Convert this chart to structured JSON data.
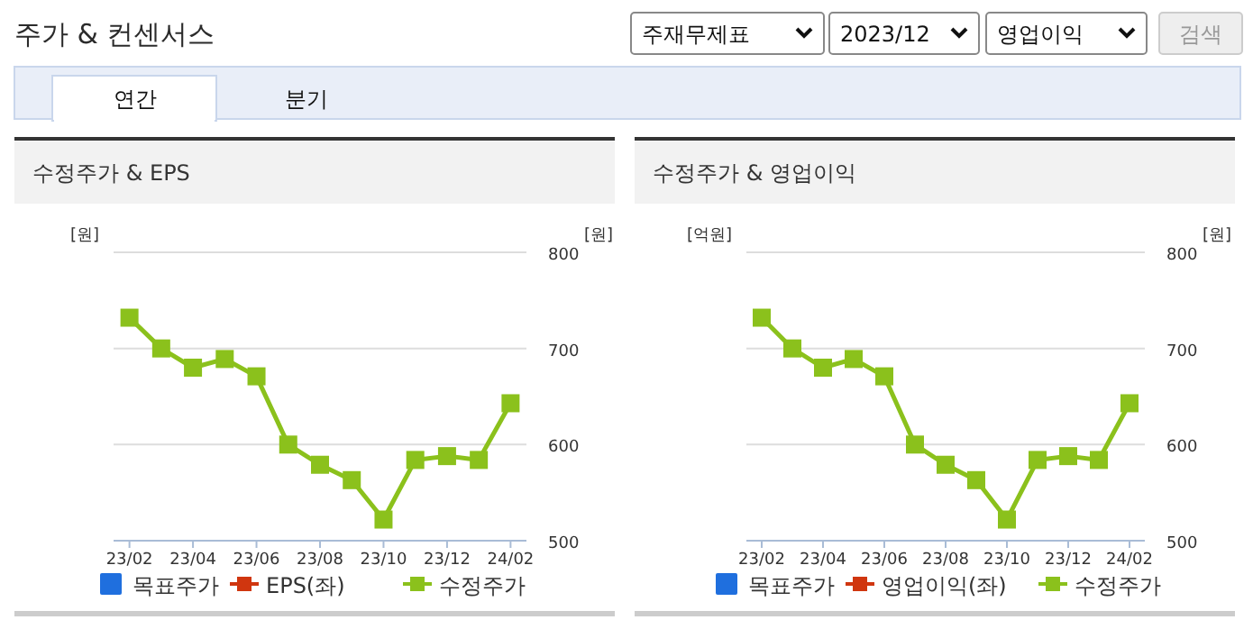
{
  "chart_data": [
    {
      "type": "other",
      "title": "주가 & 컨센서스",
      "annotations": [
        "주재무제표",
        "2023/12",
        "영업이익",
        "검색",
        "연간",
        "분기"
      ]
    },
    {
      "type": "line",
      "title": "수정주가 & EPS",
      "ylabel": "[원]",
      "y2label": "[원]",
      "categories": [
        "23/02",
        null,
        "23/04",
        null,
        "23/06",
        null,
        "23/08",
        null,
        "23/10",
        null,
        "23/12",
        null,
        "24/02"
      ],
      "series": [
        {
          "name": "목표주가",
          "type": "bar",
          "color": "#1f6fde",
          "axis": "y2",
          "values": [
            null,
            null,
            null,
            null,
            null,
            null,
            null,
            null,
            null,
            null,
            null,
            null,
            null
          ]
        },
        {
          "name": "EPS(좌)",
          "type": "line",
          "color": "#d0360f",
          "values": [
            null,
            null,
            null,
            null,
            null,
            null,
            null,
            null,
            null,
            null,
            null,
            null,
            null
          ]
        },
        {
          "name": "수정주가",
          "type": "line",
          "color": "#8bc11c",
          "axis": "y2",
          "values": [
            732,
            700,
            680,
            689,
            671,
            600,
            579,
            563,
            522,
            584,
            588,
            584,
            643
          ]
        }
      ],
      "y2lim": [
        500,
        800
      ],
      "y2ticks": [
        500,
        600,
        700,
        800
      ],
      "grid": "y",
      "legend": "bottom",
      "marker": "square"
    },
    {
      "type": "line",
      "title": "수정주가 & 영업이익",
      "ylabel": "[억원]",
      "y2label": "[원]",
      "categories": [
        "23/02",
        null,
        "23/04",
        null,
        "23/06",
        null,
        "23/08",
        null,
        "23/10",
        null,
        "23/12",
        null,
        "24/02"
      ],
      "series": [
        {
          "name": "목표주가",
          "type": "bar",
          "color": "#1f6fde",
          "axis": "y2",
          "values": [
            null,
            null,
            null,
            null,
            null,
            null,
            null,
            null,
            null,
            null,
            null,
            null,
            null
          ]
        },
        {
          "name": "영업이익(좌)",
          "type": "line",
          "color": "#d0360f",
          "values": [
            null,
            null,
            null,
            null,
            null,
            null,
            null,
            null,
            null,
            null,
            null,
            null,
            null
          ]
        },
        {
          "name": "수정주가",
          "type": "line",
          "color": "#8bc11c",
          "axis": "y2",
          "values": [
            732,
            700,
            680,
            689,
            671,
            600,
            579,
            563,
            522,
            584,
            588,
            584,
            643
          ]
        }
      ],
      "y2lim": [
        500,
        800
      ],
      "y2ticks": [
        500,
        600,
        700,
        800
      ],
      "grid": "y",
      "legend": "bottom",
      "marker": "square"
    }
  ]
}
